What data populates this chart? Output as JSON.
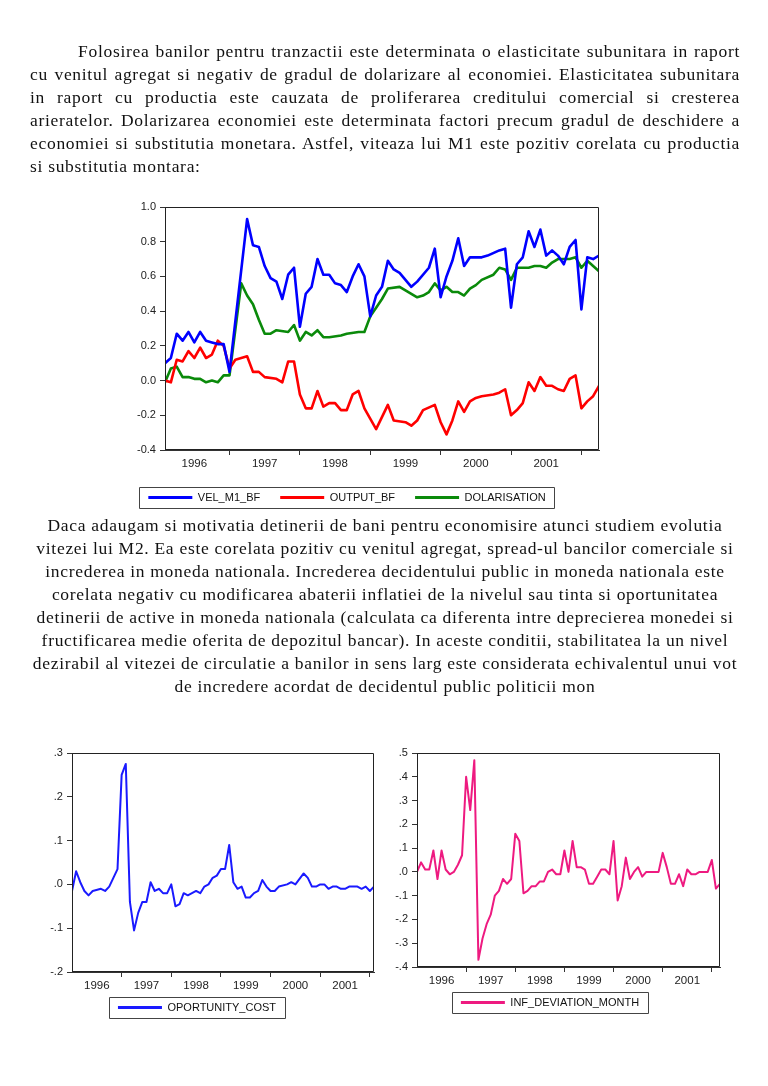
{
  "chart_data": [
    {
      "type": "line",
      "annotations": [
        "Folosirea banilor pentru tranzactii este determinata o elasticitate subunitara in raport cu venitul agregat si negativ de gradul de dolarizare al economiei. Elasticitatea subunitara in raport cu productia este cauzata de proliferarea creditului comercial si cresterea arieratelor. Dolarizarea economiei este determinata factori precum gradul de deschidere a economiei si substitutia monetara. Astfel, viteaza lui M1 este pozitiv corelata cu productia si substitutia montara:",
        "Daca adaugam si motivatia detinerii de bani pentru economisire atunci studiem evolutia vitezei lui M2. Ea este corelata pozitiv cu venitul agregat, spread-ul bancilor comerciale si increderea in moneda nationala. Increderea decidentului public in moneda nationala este corelata negativ cu modificarea abaterii inflatiei de la nivelul sau tinta si oportunitatea detinerii de active in moneda nationala (calculata ca diferenta intre deprecierea monedei si fructificarea medie oferita de depozitul bancar). In aceste conditii, stabilitatea la un nivel dezirabil al vitezei de circulatie a banilor in sens larg este considerata echivalentul unui vot de incredere acordat de decidentul public politicii mon"
      ],
      "xlim": [
        "1996-02",
        "2002-04"
      ],
      "xticks": [
        {
          "value": "1996-07",
          "label": "1996"
        },
        {
          "value": "1997",
          "label": null
        },
        {
          "value": "1997-07",
          "label": "1997"
        },
        {
          "value": "1998",
          "label": null
        },
        {
          "value": "1998-07",
          "label": "1998"
        },
        {
          "value": "1999",
          "label": null
        },
        {
          "value": "1999-07",
          "label": "1999"
        },
        {
          "value": "2000",
          "label": null
        },
        {
          "value": "2000-07",
          "label": "2000"
        },
        {
          "value": "2001",
          "label": null
        },
        {
          "value": "2001-07",
          "label": "2001"
        },
        {
          "value": "2002",
          "label": null
        }
      ],
      "ylim": [
        -0.4,
        1
      ],
      "yticks": [
        {
          "value": 1,
          "label": "1.0"
        },
        0.8,
        0.6,
        0.4,
        0.2,
        {
          "value": 0,
          "label": "0.0"
        },
        -0.2,
        -0.4
      ],
      "grid": false,
      "legend": "bottom",
      "marker": "none",
      "line_style": "solid",
      "series": [
        {
          "name": "VEL_M1_BF",
          "color": "#0000ff",
          "x": [
            "1996-02",
            "1996-03",
            "1996-04",
            "1996-05",
            "1996-06",
            "1996-07",
            "1996-08",
            "1996-09",
            "1996-10",
            "1996-11",
            "1996-12",
            "1997-01",
            "1997-04",
            "1997-05",
            "1997-06",
            "1997-07",
            "1997-08",
            "1997-09",
            "1997-10",
            "1997-11",
            "1997-12",
            "1998-01",
            "1998-02",
            "1998-03",
            "1998-04",
            "1998-05",
            "1998-06",
            "1998-07",
            "1998-08",
            "1998-09",
            "1998-10",
            "1998-11",
            "1998-12",
            "1999-01",
            "1999-02",
            "1999-03",
            "1999-04",
            "1999-05",
            "1999-06",
            "1999-08",
            "1999-09",
            "1999-11",
            "1999-12",
            "2000-01",
            "2000-02",
            "2000-03",
            "2000-04",
            "2000-05",
            "2000-06",
            "2000-08",
            "2000-09",
            "2000-11",
            "2000-12",
            "2001-01",
            "2001-02",
            "2001-03",
            "2001-04",
            "2001-05",
            "2001-06",
            "2001-07",
            "2001-08",
            "2001-09",
            "2001-10",
            "2001-11",
            "2001-12",
            "2002-01",
            "2002-02",
            "2002-03",
            "2002-04"
          ],
          "values": [
            0.1,
            0.13,
            0.27,
            0.23,
            0.28,
            0.22,
            0.28,
            0.23,
            0.22,
            0.21,
            0.21,
            0.05,
            0.93,
            0.78,
            0.77,
            0.66,
            0.59,
            0.57,
            0.47,
            0.61,
            0.65,
            0.31,
            0.5,
            0.54,
            0.7,
            0.61,
            0.61,
            0.56,
            0.55,
            0.51,
            0.6,
            0.67,
            0.6,
            0.37,
            0.49,
            0.54,
            0.69,
            0.64,
            0.62,
            0.54,
            0.57,
            0.65,
            0.76,
            0.48,
            0.6,
            0.69,
            0.82,
            0.66,
            0.71,
            0.71,
            0.72,
            0.75,
            0.76,
            0.42,
            0.67,
            0.71,
            0.86,
            0.77,
            0.87,
            0.72,
            0.75,
            0.72,
            0.67,
            0.77,
            0.81,
            0.41,
            0.71,
            0.7,
            0.72
          ]
        },
        {
          "name": "OUTPUT_BF",
          "color": "#ff0000",
          "x": [
            "1996-02",
            "1996-03",
            "1996-04",
            "1996-05",
            "1996-06",
            "1996-07",
            "1996-08",
            "1996-09",
            "1996-10",
            "1996-11",
            "1996-12",
            "1997-01",
            "1997-02",
            "1997-04",
            "1997-05",
            "1997-06",
            "1997-07",
            "1997-09",
            "1997-10",
            "1997-11",
            "1997-12",
            "1998-01",
            "1998-02",
            "1998-03",
            "1998-04",
            "1998-05",
            "1998-06",
            "1998-07",
            "1998-08",
            "1998-09",
            "1998-10",
            "1998-11",
            "1998-12",
            "1999-02",
            "1999-04",
            "1999-05",
            "1999-07",
            "1999-08",
            "1999-09",
            "1999-10",
            "1999-12",
            "2000-01",
            "2000-02",
            "2000-03",
            "2000-04",
            "2000-05",
            "2000-06",
            "2000-07",
            "2000-08",
            "2000-10",
            "2000-11",
            "2000-12",
            "2001-01",
            "2001-02",
            "2001-03",
            "2001-04",
            "2001-05",
            "2001-06",
            "2001-07",
            "2001-08",
            "2001-09",
            "2001-10",
            "2001-11",
            "2001-12",
            "2002-01",
            "2002-02",
            "2002-03",
            "2002-04"
          ],
          "values": [
            0.0,
            -0.01,
            0.12,
            0.11,
            0.17,
            0.13,
            0.19,
            0.13,
            0.15,
            0.23,
            0.2,
            0.07,
            0.12,
            0.14,
            0.05,
            0.05,
            0.02,
            0.01,
            -0.01,
            0.11,
            0.11,
            -0.08,
            -0.16,
            -0.16,
            -0.06,
            -0.15,
            -0.13,
            -0.13,
            -0.17,
            -0.17,
            -0.08,
            -0.06,
            -0.16,
            -0.28,
            -0.14,
            -0.23,
            -0.24,
            -0.26,
            -0.23,
            -0.17,
            -0.14,
            -0.24,
            -0.31,
            -0.23,
            -0.12,
            -0.18,
            -0.12,
            -0.1,
            -0.09,
            -0.08,
            -0.07,
            -0.05,
            -0.2,
            -0.17,
            -0.13,
            -0.01,
            -0.06,
            0.02,
            -0.03,
            -0.03,
            -0.05,
            -0.06,
            0.01,
            0.03,
            -0.16,
            -0.12,
            -0.09,
            -0.03
          ]
        },
        {
          "name": "DOLARISATION",
          "color": "#0a8a0a",
          "x": [
            "1996-02",
            "1996-03",
            "1996-04",
            "1996-05",
            "1996-06",
            "1996-07",
            "1996-08",
            "1996-09",
            "1996-10",
            "1996-11",
            "1996-12",
            "1997-01",
            "1997-03",
            "1997-04",
            "1997-05",
            "1997-06",
            "1997-07",
            "1997-08",
            "1997-09",
            "1997-11",
            "1997-12",
            "1998-01",
            "1998-02",
            "1998-03",
            "1998-04",
            "1998-05",
            "1998-06",
            "1998-08",
            "1998-09",
            "1998-11",
            "1998-12",
            "1999-01",
            "1999-02",
            "1999-03",
            "1999-04",
            "1999-06",
            "1999-07",
            "1999-09",
            "1999-10",
            "1999-11",
            "1999-12",
            "2000-01",
            "2000-02",
            "2000-03",
            "2000-04",
            "2000-05",
            "2000-06",
            "2000-07",
            "2000-08",
            "2000-10",
            "2000-11",
            "2000-12",
            "2001-01",
            "2001-02",
            "2001-03",
            "2001-04",
            "2001-05",
            "2001-06",
            "2001-07",
            "2001-08",
            "2001-09",
            "2001-11",
            "2001-12",
            "2002-01",
            "2002-02",
            "2002-03",
            "2002-04"
          ],
          "values": [
            -0.01,
            0.07,
            0.08,
            0.02,
            0.02,
            0.01,
            0.01,
            -0.01,
            0.0,
            -0.01,
            0.03,
            0.03,
            0.56,
            0.49,
            0.44,
            0.35,
            0.27,
            0.27,
            0.29,
            0.28,
            0.32,
            0.23,
            0.28,
            0.26,
            0.29,
            0.25,
            0.25,
            0.26,
            0.27,
            0.28,
            0.28,
            0.37,
            0.42,
            0.47,
            0.53,
            0.54,
            0.52,
            0.48,
            0.49,
            0.51,
            0.56,
            0.52,
            0.54,
            0.51,
            0.51,
            0.49,
            0.53,
            0.55,
            0.58,
            0.61,
            0.65,
            0.64,
            0.58,
            0.65,
            0.65,
            0.65,
            0.66,
            0.66,
            0.65,
            0.68,
            0.7,
            0.7,
            0.71,
            0.65,
            0.69,
            0.66,
            0.63
          ]
        }
      ]
    },
    {
      "type": "line",
      "xlim": [
        "1996-01",
        "2002-02"
      ],
      "xticks": [
        {
          "value": "1996-07",
          "label": "1996"
        },
        {
          "value": "1997",
          "label": null
        },
        {
          "value": "1997-07",
          "label": "1997"
        },
        {
          "value": "1998",
          "label": null
        },
        {
          "value": "1998-07",
          "label": "1998"
        },
        {
          "value": "1999",
          "label": null
        },
        {
          "value": "1999-07",
          "label": "1999"
        },
        {
          "value": "2000",
          "label": null
        },
        {
          "value": "2000-07",
          "label": "2000"
        },
        {
          "value": "2001",
          "label": null
        },
        {
          "value": "2001-07",
          "label": "2001"
        },
        {
          "value": "2002",
          "label": null
        }
      ],
      "ylim": [
        -0.2,
        0.3
      ],
      "yticks": [
        {
          "value": 0.3,
          "label": ".3"
        },
        {
          "value": 0.2,
          "label": ".2"
        },
        {
          "value": 0.1,
          "label": ".1"
        },
        {
          "value": 0,
          "label": ".0"
        },
        {
          "value": -0.1,
          "label": "-.1"
        },
        {
          "value": -0.2,
          "label": "-.2"
        }
      ],
      "grid": false,
      "legend": "bottom",
      "marker": "none",
      "line_style": "solid",
      "series": [
        {
          "name": "OPORTUNITY_COST",
          "color": "#1a1aff",
          "x": [
            "1996-01",
            "1996-02",
            "1996-03",
            "1996-04",
            "1996-05",
            "1996-06",
            "1996-08",
            "1996-09",
            "1996-10",
            "1996-11",
            "1996-12",
            "1997-01",
            "1997-02",
            "1997-03",
            "1997-04",
            "1997-05",
            "1997-06",
            "1997-07",
            "1997-08",
            "1997-09",
            "1997-10",
            "1997-11",
            "1997-12",
            "1998-01",
            "1998-02",
            "1998-03",
            "1998-04",
            "1998-05",
            "1998-06",
            "1998-07",
            "1998-08",
            "1998-09",
            "1998-10",
            "1998-11",
            "1998-12",
            "1999-01",
            "1999-02",
            "1999-03",
            "1999-04",
            "1999-05",
            "1999-06",
            "1999-07",
            "1999-08",
            "1999-09",
            "1999-10",
            "1999-11",
            "1999-12",
            "2000-01",
            "2000-02",
            "2000-03",
            "2000-05",
            "2000-06",
            "2000-07",
            "2000-09",
            "2000-10",
            "2000-11",
            "2000-12",
            "2001-01",
            "2001-02",
            "2001-03",
            "2001-04",
            "2001-05",
            "2001-06",
            "2001-07",
            "2001-08",
            "2001-09",
            "2001-10",
            "2001-11",
            "2001-12",
            "2002-01",
            "2002-02"
          ],
          "values": [
            -0.015,
            0.03,
            0.005,
            -0.015,
            -0.025,
            -0.015,
            -0.01,
            -0.015,
            -0.005,
            0.015,
            0.035,
            0.25,
            0.275,
            -0.04,
            -0.105,
            -0.065,
            -0.04,
            -0.04,
            0.005,
            -0.015,
            -0.01,
            -0.02,
            -0.02,
            0.0,
            -0.05,
            -0.045,
            -0.02,
            -0.025,
            -0.02,
            -0.015,
            -0.02,
            -0.005,
            0.0,
            0.015,
            0.02,
            0.035,
            0.035,
            0.09,
            0.005,
            -0.01,
            -0.005,
            -0.03,
            -0.03,
            -0.02,
            -0.015,
            0.01,
            -0.005,
            -0.015,
            -0.015,
            -0.005,
            0.0,
            0.005,
            0.0,
            0.025,
            0.015,
            -0.005,
            -0.005,
            0.0,
            0.0,
            -0.01,
            -0.005,
            -0.005,
            -0.01,
            -0.01,
            -0.005,
            -0.005,
            -0.005,
            -0.01,
            -0.005,
            -0.015,
            -0.005
          ]
        }
      ]
    },
    {
      "type": "line",
      "xlim": [
        "1996-01",
        "2002-03"
      ],
      "xticks": [
        {
          "value": "1996-07",
          "label": "1996"
        },
        {
          "value": "1997",
          "label": null
        },
        {
          "value": "1997-07",
          "label": "1997"
        },
        {
          "value": "1998",
          "label": null
        },
        {
          "value": "1998-07",
          "label": "1998"
        },
        {
          "value": "1999",
          "label": null
        },
        {
          "value": "1999-07",
          "label": "1999"
        },
        {
          "value": "2000",
          "label": null
        },
        {
          "value": "2000-07",
          "label": "2000"
        },
        {
          "value": "2001",
          "label": null
        },
        {
          "value": "2001-07",
          "label": "2001"
        },
        {
          "value": "2002",
          "label": null
        }
      ],
      "ylim": [
        -0.4,
        0.5
      ],
      "yticks": [
        {
          "value": 0.5,
          "label": ".5"
        },
        {
          "value": 0.4,
          "label": ".4"
        },
        {
          "value": 0.3,
          "label": ".3"
        },
        {
          "value": 0.2,
          "label": ".2"
        },
        {
          "value": 0.1,
          "label": ".1"
        },
        {
          "value": 0,
          "label": ".0"
        },
        {
          "value": -0.1,
          "label": "-.1"
        },
        {
          "value": -0.2,
          "label": "-.2"
        },
        {
          "value": -0.3,
          "label": "-.3"
        },
        {
          "value": -0.4,
          "label": "-.4"
        }
      ],
      "grid": false,
      "legend": "bottom",
      "marker": "none",
      "line_style": "solid",
      "series": [
        {
          "name": "INF_DEVIATION_MONTH",
          "color": "#ee1a80",
          "x": [
            "1996-01",
            "1996-02",
            "1996-03",
            "1996-04",
            "1996-05",
            "1996-06",
            "1996-07",
            "1996-08",
            "1996-09",
            "1996-10",
            "1996-11",
            "1996-12",
            "1997-01",
            "1997-02",
            "1997-03",
            "1997-04",
            "1997-05",
            "1997-06",
            "1997-07",
            "1997-08",
            "1997-09",
            "1997-10",
            "1997-11",
            "1997-12",
            "1998-01",
            "1998-02",
            "1998-03",
            "1998-04",
            "1998-05",
            "1998-06",
            "1998-07",
            "1998-08",
            "1998-09",
            "1998-10",
            "1998-11",
            "1998-12",
            "1999-01",
            "1999-02",
            "1999-03",
            "1999-04",
            "1999-05",
            "1999-06",
            "1999-07",
            "1999-08",
            "1999-09",
            "1999-10",
            "1999-11",
            "1999-12",
            "2000-01",
            "2000-02",
            "2000-03",
            "2000-04",
            "2000-05",
            "2000-06",
            "2000-07",
            "2000-08",
            "2000-09",
            "2000-11",
            "2000-12",
            "2001-01",
            "2001-02",
            "2001-03",
            "2001-04",
            "2001-05",
            "2001-06",
            "2001-07",
            "2001-08",
            "2001-09",
            "2001-10",
            "2001-12",
            "2002-01",
            "2002-02",
            "2002-03"
          ],
          "values": [
            0.0,
            0.04,
            0.01,
            0.01,
            0.09,
            -0.03,
            0.09,
            0.01,
            -0.01,
            0.0,
            0.03,
            0.07,
            0.4,
            0.26,
            0.47,
            -0.37,
            -0.28,
            -0.22,
            -0.18,
            -0.1,
            -0.08,
            -0.03,
            -0.05,
            -0.03,
            0.16,
            0.13,
            -0.09,
            -0.08,
            -0.06,
            -0.06,
            -0.04,
            -0.04,
            0.0,
            0.01,
            -0.01,
            -0.01,
            0.09,
            0.0,
            0.13,
            0.02,
            0.02,
            0.01,
            -0.05,
            -0.05,
            -0.02,
            0.01,
            0.01,
            -0.01,
            0.13,
            -0.12,
            -0.06,
            0.06,
            -0.03,
            0.0,
            0.02,
            -0.02,
            0.0,
            0.0,
            0.0,
            0.08,
            0.02,
            -0.05,
            -0.05,
            -0.01,
            -0.06,
            0.01,
            -0.01,
            -0.01,
            0.0,
            0.0,
            0.05,
            -0.07,
            -0.05
          ]
        }
      ]
    }
  ]
}
